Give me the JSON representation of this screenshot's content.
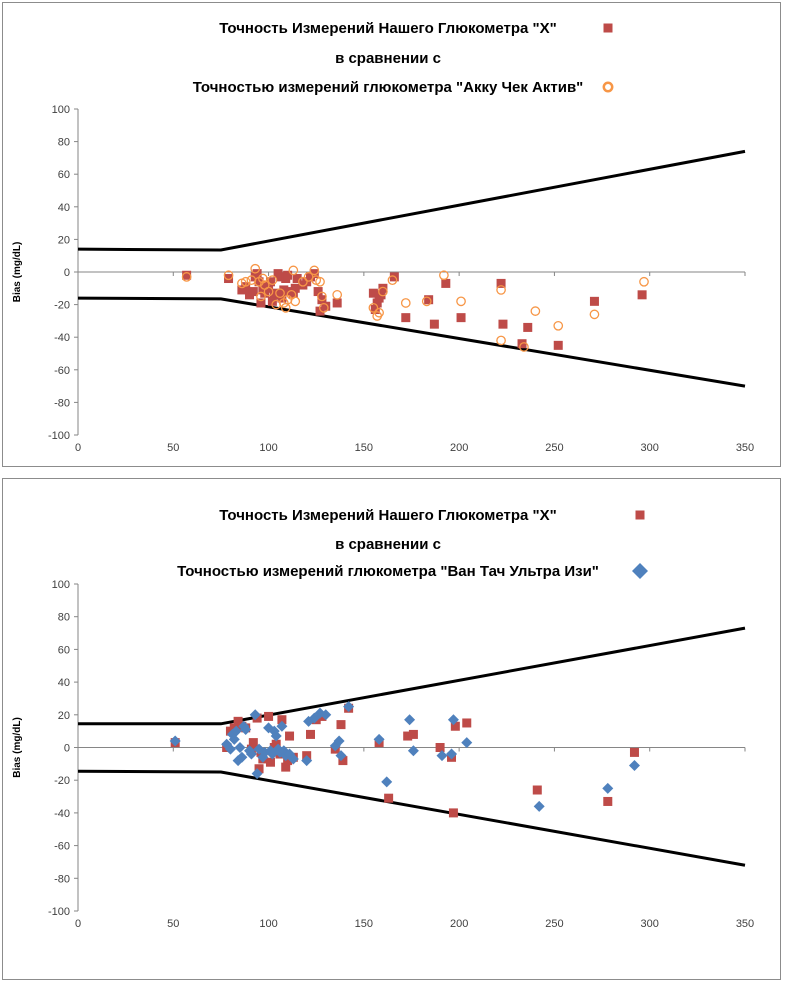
{
  "colors": {
    "series_x": "#be4b48",
    "series_accu": "#f79646",
    "series_onetouch": "#4f81bd",
    "limit_line": "#000000",
    "axis": "#868686"
  },
  "chart_data": [
    {
      "type": "scatter",
      "title_lines": [
        "Точность Измерений Нашего Глюкометра \"X\"",
        "в сравнении с",
        "Точностью измерений глюкометра \"Акку Чек Актив\""
      ],
      "ylabel": "Bias (mg/dL)",
      "xlim": [
        0,
        350
      ],
      "ylim": [
        -100,
        100
      ],
      "xticks": [
        "0",
        "50",
        "100",
        "150",
        "200",
        "250",
        "300",
        "350"
      ],
      "yticks": [
        "100",
        "80",
        "60",
        "40",
        "20",
        "0",
        "-20",
        "-40",
        "-60",
        "-80",
        "-100"
      ],
      "legend_markers": [
        "square",
        "circle"
      ],
      "limits": {
        "upper": [
          [
            0,
            14
          ],
          [
            75,
            13.5
          ],
          [
            350,
            74
          ]
        ],
        "lower": [
          [
            0,
            -16
          ],
          [
            75,
            -16.5
          ],
          [
            350,
            -70
          ]
        ]
      },
      "series": [
        {
          "marker": "square",
          "color_key": "series_x",
          "points": [
            [
              57,
              -2
            ],
            [
              79,
              -4
            ],
            [
              86,
              -11
            ],
            [
              88,
              -9
            ],
            [
              90,
              -14
            ],
            [
              92,
              -12
            ],
            [
              93,
              -3
            ],
            [
              94,
              -1
            ],
            [
              95,
              -6
            ],
            [
              96,
              -19
            ],
            [
              97,
              -11
            ],
            [
              98,
              -13
            ],
            [
              99,
              -8
            ],
            [
              100,
              -10
            ],
            [
              101,
              -6
            ],
            [
              102,
              -18
            ],
            [
              103,
              -14
            ],
            [
              104,
              -13
            ],
            [
              105,
              -1
            ],
            [
              106,
              -3
            ],
            [
              107,
              -16
            ],
            [
              108,
              -11
            ],
            [
              109,
              -4
            ],
            [
              110,
              -2
            ],
            [
              111,
              -12
            ],
            [
              113,
              -13
            ],
            [
              114,
              -10
            ],
            [
              115,
              -4
            ],
            [
              118,
              -8
            ],
            [
              120,
              -6
            ],
            [
              122,
              -3
            ],
            [
              124,
              -1
            ],
            [
              126,
              -12
            ],
            [
              127,
              -24
            ],
            [
              128,
              -17
            ],
            [
              130,
              -21
            ],
            [
              136,
              -19
            ],
            [
              155,
              -13
            ],
            [
              156,
              -23
            ],
            [
              157,
              -19
            ],
            [
              158,
              -16
            ],
            [
              159,
              -14
            ],
            [
              160,
              -10
            ],
            [
              166,
              -3
            ],
            [
              172,
              -28
            ],
            [
              184,
              -17
            ],
            [
              187,
              -32
            ],
            [
              193,
              -7
            ],
            [
              201,
              -28
            ],
            [
              222,
              -7
            ],
            [
              223,
              -32
            ],
            [
              233,
              -44
            ],
            [
              236,
              -34
            ],
            [
              252,
              -45
            ],
            [
              271,
              -18
            ],
            [
              296,
              -14
            ]
          ]
        },
        {
          "marker": "circle",
          "color_key": "series_accu",
          "points": [
            [
              57,
              -3
            ],
            [
              79,
              -2
            ],
            [
              86,
              -7
            ],
            [
              88,
              -6
            ],
            [
              91,
              -5
            ],
            [
              93,
              2
            ],
            [
              95,
              -6
            ],
            [
              96,
              -15
            ],
            [
              97,
              -4
            ],
            [
              98,
              -8
            ],
            [
              100,
              -12
            ],
            [
              102,
              -5
            ],
            [
              104,
              -20
            ],
            [
              106,
              -13
            ],
            [
              108,
              -19
            ],
            [
              109,
              -22
            ],
            [
              110,
              -17
            ],
            [
              112,
              -14
            ],
            [
              113,
              1
            ],
            [
              114,
              -18
            ],
            [
              118,
              -6
            ],
            [
              121,
              -3
            ],
            [
              124,
              1
            ],
            [
              125,
              -5
            ],
            [
              127,
              -6
            ],
            [
              128,
              -15
            ],
            [
              129,
              -22
            ],
            [
              136,
              -14
            ],
            [
              155,
              -22
            ],
            [
              157,
              -27
            ],
            [
              158,
              -25
            ],
            [
              160,
              -12
            ],
            [
              165,
              -5
            ],
            [
              172,
              -19
            ],
            [
              183,
              -18
            ],
            [
              192,
              -2
            ],
            [
              201,
              -18
            ],
            [
              222,
              -11
            ],
            [
              222,
              -42
            ],
            [
              234,
              -46
            ],
            [
              240,
              -24
            ],
            [
              252,
              -33
            ],
            [
              271,
              -26
            ],
            [
              297,
              -6
            ]
          ]
        }
      ]
    },
    {
      "type": "scatter",
      "title_lines": [
        "Точность Измерений Нашего Глюкометра \"X\"",
        "в сравнении с",
        "Точностью измерений глюкометра \"Ван Тач Ультра Изи\""
      ],
      "ylabel": "Bias (mg/dL)",
      "xlim": [
        0,
        350
      ],
      "ylim": [
        -100,
        100
      ],
      "xticks": [
        "0",
        "50",
        "100",
        "150",
        "200",
        "250",
        "300",
        "350"
      ],
      "yticks": [
        "100",
        "80",
        "60",
        "40",
        "20",
        "0",
        "-20",
        "-40",
        "-60",
        "-80",
        "-100"
      ],
      "legend_markers": [
        "square",
        "diamond"
      ],
      "limits": {
        "upper": [
          [
            0,
            14.5
          ],
          [
            75,
            14.5
          ],
          [
            350,
            73
          ]
        ],
        "lower": [
          [
            0,
            -14.5
          ],
          [
            75,
            -15
          ],
          [
            350,
            -72
          ]
        ]
      },
      "series": [
        {
          "marker": "square",
          "color_key": "series_x",
          "points": [
            [
              51,
              3
            ],
            [
              78,
              0
            ],
            [
              80,
              10
            ],
            [
              82,
              12
            ],
            [
              84,
              16
            ],
            [
              86,
              13
            ],
            [
              88,
              12
            ],
            [
              91,
              -1
            ],
            [
              92,
              3
            ],
            [
              94,
              18
            ],
            [
              95,
              -13
            ],
            [
              96,
              -3
            ],
            [
              97,
              -7
            ],
            [
              100,
              19
            ],
            [
              101,
              -9
            ],
            [
              103,
              0
            ],
            [
              104,
              2
            ],
            [
              106,
              -4
            ],
            [
              107,
              17
            ],
            [
              109,
              -12
            ],
            [
              110,
              -8
            ],
            [
              111,
              7
            ],
            [
              113,
              -6
            ],
            [
              120,
              -5
            ],
            [
              122,
              8
            ],
            [
              125,
              17
            ],
            [
              128,
              19
            ],
            [
              135,
              -1
            ],
            [
              138,
              14
            ],
            [
              139,
              -8
            ],
            [
              142,
              24
            ],
            [
              158,
              3
            ],
            [
              163,
              -31
            ],
            [
              173,
              7
            ],
            [
              176,
              8
            ],
            [
              190,
              0
            ],
            [
              196,
              -6
            ],
            [
              197,
              -40
            ],
            [
              198,
              13
            ],
            [
              204,
              15
            ],
            [
              241,
              -26
            ],
            [
              278,
              -33
            ],
            [
              292,
              -3
            ]
          ]
        },
        {
          "marker": "diamond",
          "color_key": "series_onetouch",
          "points": [
            [
              51,
              4
            ],
            [
              78,
              2
            ],
            [
              80,
              -1
            ],
            [
              81,
              8
            ],
            [
              82,
              5
            ],
            [
              83,
              10
            ],
            [
              84,
              -8
            ],
            [
              85,
              0
            ],
            [
              86,
              -6
            ],
            [
              87,
              13
            ],
            [
              88,
              11
            ],
            [
              90,
              -2
            ],
            [
              91,
              -4
            ],
            [
              93,
              20
            ],
            [
              94,
              -16
            ],
            [
              95,
              -1
            ],
            [
              97,
              -6
            ],
            [
              98,
              -3
            ],
            [
              100,
              12
            ],
            [
              101,
              -2
            ],
            [
              102,
              -4
            ],
            [
              103,
              10
            ],
            [
              104,
              7
            ],
            [
              105,
              -1
            ],
            [
              106,
              -3
            ],
            [
              107,
              13
            ],
            [
              108,
              -2
            ],
            [
              109,
              -5
            ],
            [
              111,
              -4
            ],
            [
              113,
              -7
            ],
            [
              120,
              -8
            ],
            [
              121,
              16
            ],
            [
              124,
              18
            ],
            [
              127,
              21
            ],
            [
              130,
              20
            ],
            [
              135,
              1
            ],
            [
              137,
              4
            ],
            [
              138,
              -5
            ],
            [
              142,
              25
            ],
            [
              158,
              5
            ],
            [
              162,
              -21
            ],
            [
              174,
              17
            ],
            [
              176,
              -2
            ],
            [
              191,
              -5
            ],
            [
              196,
              -4
            ],
            [
              197,
              17
            ],
            [
              204,
              3
            ],
            [
              242,
              -36
            ],
            [
              278,
              -25
            ],
            [
              292,
              -11
            ]
          ]
        }
      ]
    }
  ]
}
